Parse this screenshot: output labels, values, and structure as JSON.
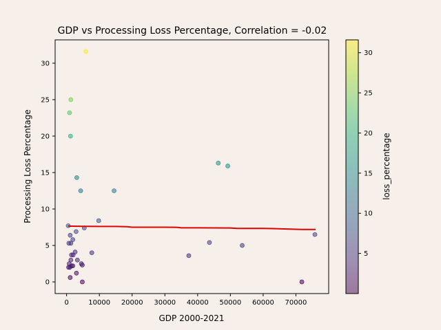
{
  "chart_data": {
    "type": "scatter",
    "title": "GDP vs Processing Loss Percentage, Correlation = -0.02",
    "xlabel": "GDP 2000-2021",
    "ylabel": "Processing Loss Percentage",
    "xlim": [
      -3500,
      80000
    ],
    "ylim": [
      -1.6,
      33.2
    ],
    "xticks": [
      0,
      10000,
      20000,
      30000,
      40000,
      50000,
      60000,
      70000
    ],
    "yticks": [
      0,
      5,
      10,
      15,
      20,
      25,
      30
    ],
    "grid": false,
    "colorbar": {
      "label": "loss_percentage",
      "range": [
        0,
        31.6
      ],
      "ticks": [
        5,
        10,
        15,
        20,
        25,
        30
      ],
      "colormap": "viridis"
    },
    "points": [
      {
        "x": 5900,
        "y": 31.6
      },
      {
        "x": 1300,
        "y": 25.0
      },
      {
        "x": 900,
        "y": 23.2
      },
      {
        "x": 1200,
        "y": 20.0
      },
      {
        "x": 46300,
        "y": 16.3
      },
      {
        "x": 49200,
        "y": 15.9
      },
      {
        "x": 3100,
        "y": 14.3
      },
      {
        "x": 4300,
        "y": 12.5
      },
      {
        "x": 14500,
        "y": 12.5
      },
      {
        "x": 9800,
        "y": 8.4
      },
      {
        "x": 500,
        "y": 7.7
      },
      {
        "x": 5400,
        "y": 7.4
      },
      {
        "x": 2900,
        "y": 6.9
      },
      {
        "x": 1100,
        "y": 6.4
      },
      {
        "x": 75800,
        "y": 6.5
      },
      {
        "x": 1900,
        "y": 5.8
      },
      {
        "x": 700,
        "y": 5.3
      },
      {
        "x": 1300,
        "y": 5.3
      },
      {
        "x": 43600,
        "y": 5.4
      },
      {
        "x": 53600,
        "y": 5.0
      },
      {
        "x": 7700,
        "y": 4.0
      },
      {
        "x": 2600,
        "y": 4.1
      },
      {
        "x": 1500,
        "y": 3.7
      },
      {
        "x": 2000,
        "y": 3.7
      },
      {
        "x": 37300,
        "y": 3.6
      },
      {
        "x": 1300,
        "y": 3.0
      },
      {
        "x": 3300,
        "y": 3.0
      },
      {
        "x": 800,
        "y": 2.5
      },
      {
        "x": 4500,
        "y": 2.5
      },
      {
        "x": 4800,
        "y": 2.3
      },
      {
        "x": 1500,
        "y": 2.2
      },
      {
        "x": 1900,
        "y": 2.2
      },
      {
        "x": 600,
        "y": 2.0
      },
      {
        "x": 1000,
        "y": 2.0
      },
      {
        "x": 3000,
        "y": 1.2
      },
      {
        "x": 1100,
        "y": 0.6
      },
      {
        "x": 4800,
        "y": 0.0
      },
      {
        "x": 71800,
        "y": 0.0
      }
    ],
    "trend_line": {
      "color": "#dd0000",
      "x": [
        500,
        5000,
        10000,
        15000,
        18500,
        20000,
        25000,
        30000,
        34000,
        35000,
        40000,
        45000,
        50000,
        52000,
        55000,
        60000,
        64000,
        70000,
        72000,
        76000
      ],
      "y": [
        7.65,
        7.62,
        7.6,
        7.6,
        7.58,
        7.5,
        7.5,
        7.5,
        7.48,
        7.42,
        7.42,
        7.41,
        7.4,
        7.33,
        7.33,
        7.33,
        7.3,
        7.22,
        7.2,
        7.2
      ]
    }
  }
}
